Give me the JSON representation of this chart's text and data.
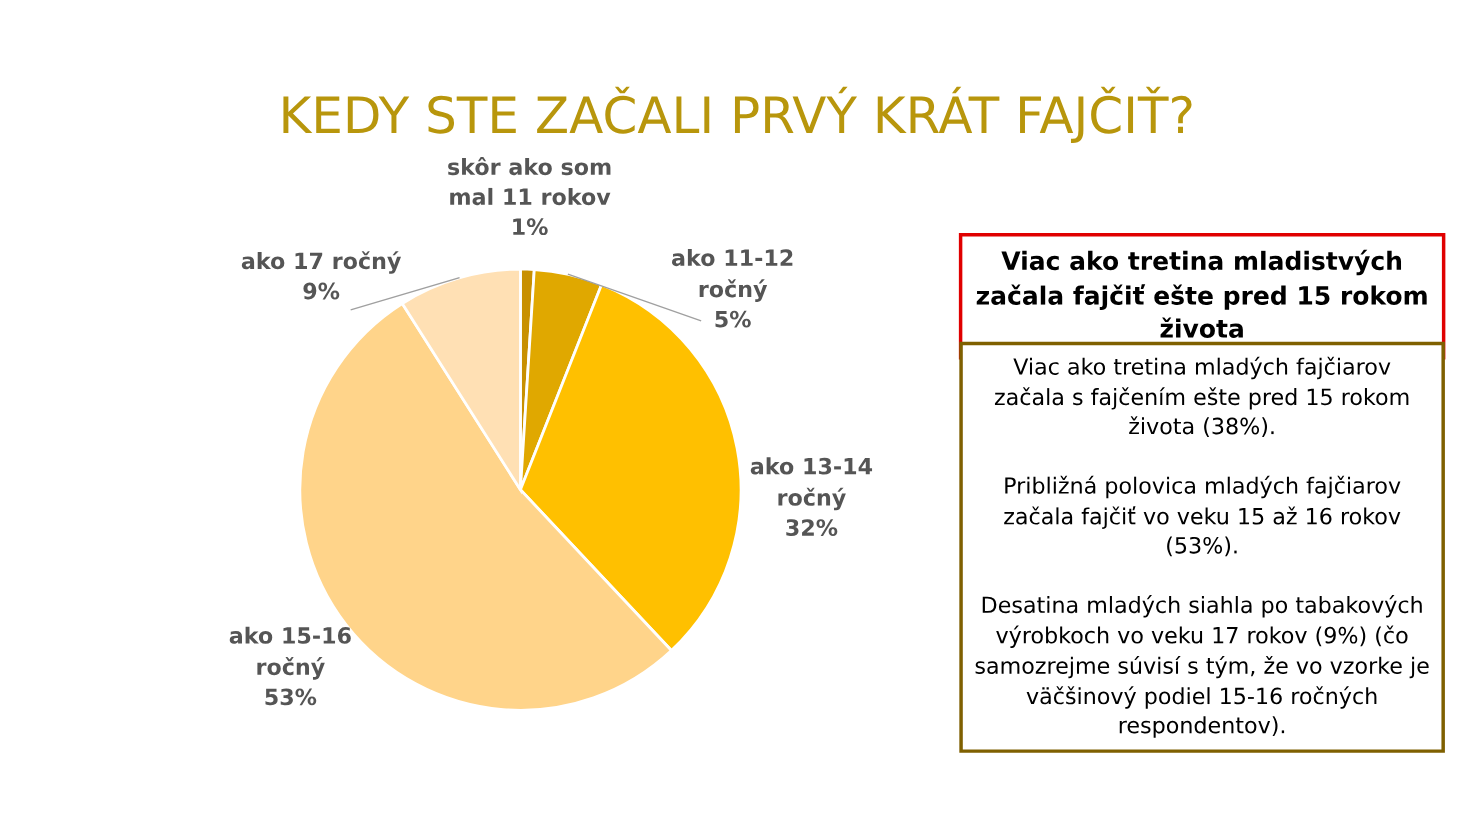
{
  "chart_data": {
    "type": "pie",
    "title": "KEDY STE ZAČALI PRVÝ KRÁT FAJČIŤ?",
    "categories": [
      "skôr ako som\nmal 11 rokov",
      "ako 11-12\nročný",
      "ako 13-14\nročný",
      "ako 15-16\nročný",
      "ako 17 ročný"
    ],
    "values": [
      1,
      5,
      32,
      53,
      9
    ],
    "colors": [
      "#c89000",
      "#e0a800",
      "#ffc000",
      "#ffd48a",
      "#ffe0b4"
    ],
    "value_labels": [
      "1%",
      "5%",
      "32%",
      "53%",
      "9%"
    ],
    "legend": false,
    "annotations": [
      "Viac ako tretina mladistvých\nzačala fajčiť ešte pred 15 rokom\nživota",
      "Viac ako tretina mladých fajčiarov\nzačala s fajčením ešte pred 15 rokom\nživota (38%).\n\nPribližná polovica mladých fajčiarov\nzačala fajčiť vo veku 15 až 16 rokov\n(53%).\n\nDesatina mladých siahla po tabakových\nvýrobkoch vo veku 17 rokov (9%) (čo\nsamozrejme súvisí s tým, že vo vzorke je\nväčšinový podiel 15-16 ročných\nrespondentov)."
    ]
  }
}
